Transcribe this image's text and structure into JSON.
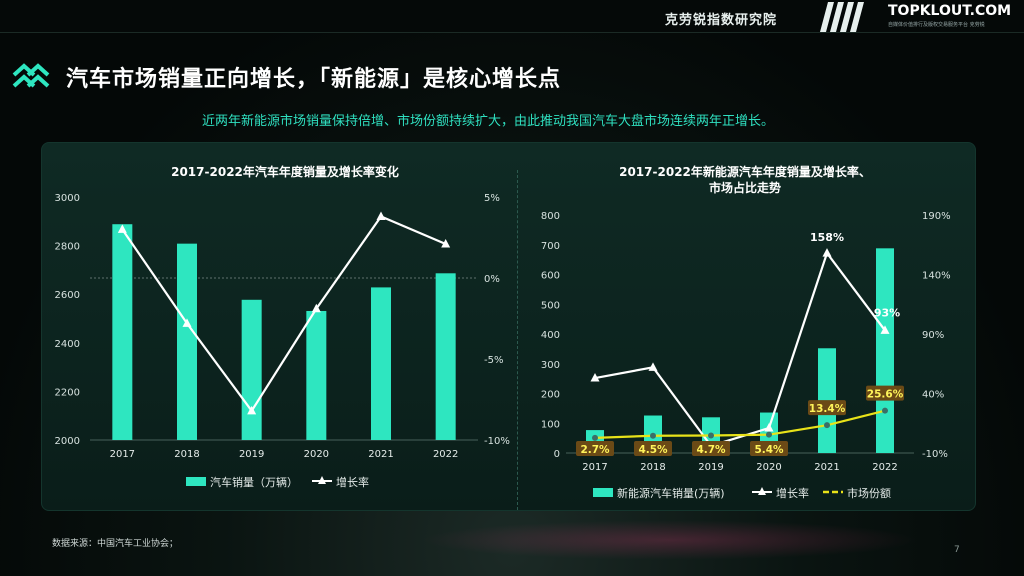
{
  "header": {
    "org": "克劳锐指数研究院",
    "brand": "TOPKLOUT.COM",
    "brand_sub": "自媒体价值排行及版权交易服务平台 克劳锐"
  },
  "title": "汽车市场销量正向增长，「新能源」是核心增长点",
  "subtitle": "近两年新能源市场销量保持倍增、市场份额持续扩大，由此推动我国汽车大盘市场连续两年正增长。",
  "footer": {
    "source": "数据来源：中国汽车工业协会；",
    "page": "7"
  },
  "colors": {
    "bar": "#2ee6c0",
    "line": "#ffffff",
    "share_line": "#e8e219",
    "label_box": "#6b4a16"
  },
  "chart_data": [
    {
      "type": "bar",
      "title": "2017-2022年汽车年度销量及增长率变化",
      "categories": [
        "2017",
        "2018",
        "2019",
        "2020",
        "2021",
        "2022"
      ],
      "series": [
        {
          "name": "汽车销量（万辆）",
          "type": "bar",
          "axis": "left",
          "values": [
            2888,
            2808,
            2577,
            2531,
            2628,
            2686
          ]
        },
        {
          "name": "增长率",
          "type": "line",
          "axis": "right",
          "values": [
            3.0,
            -2.8,
            -8.2,
            -1.9,
            3.8,
            2.1
          ]
        }
      ],
      "y_left": {
        "min": 2000,
        "max": 3000,
        "ticks": [
          "2000",
          "2200",
          "2400",
          "2600",
          "2800",
          "3000"
        ]
      },
      "y_right": {
        "min": -10,
        "max": 5,
        "ticks": [
          "-10%",
          "-5%",
          "0%",
          "5%"
        ]
      }
    },
    {
      "type": "bar",
      "title": [
        "2017-2022年新能源汽车年度销量及增长率、",
        "市场占比走势"
      ],
      "categories": [
        "2017",
        "2018",
        "2019",
        "2020",
        "2021",
        "2022"
      ],
      "series": [
        {
          "name": "新能源汽车销量(万辆)",
          "type": "bar",
          "axis": "left",
          "values": [
            77,
            126,
            120,
            136,
            352,
            688
          ]
        },
        {
          "name": "增长率",
          "type": "line",
          "axis": "right",
          "values": [
            53,
            62,
            -4,
            11,
            158,
            93
          ]
        },
        {
          "name": "市场份额",
          "type": "line",
          "axis": "right",
          "values": [
            2.7,
            4.5,
            4.7,
            5.4,
            13.4,
            25.6
          ]
        }
      ],
      "share_labels": [
        "2.7%",
        "4.5%",
        "4.7%",
        "5.4%",
        "13.4%",
        "25.6%"
      ],
      "growth_labels": {
        "4": "158%",
        "5": "93%"
      },
      "y_left": {
        "min": 0,
        "max": 800,
        "ticks": [
          "0",
          "100",
          "200",
          "300",
          "400",
          "500",
          "600",
          "700",
          "800"
        ]
      },
      "y_right": {
        "min": -10,
        "max": 190,
        "ticks": [
          "-10%",
          "40%",
          "90%",
          "140%",
          "190%"
        ]
      }
    }
  ]
}
